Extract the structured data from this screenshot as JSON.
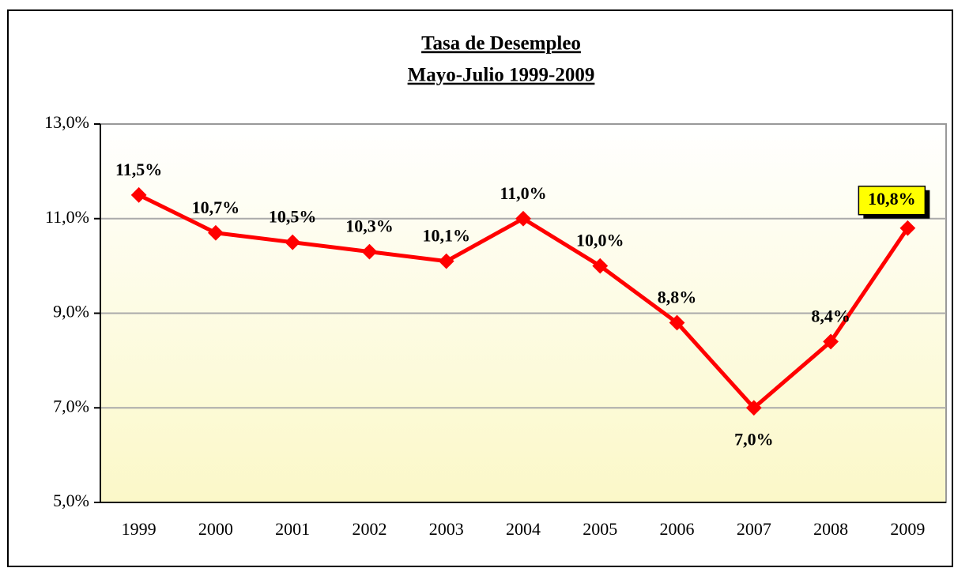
{
  "chart_data": {
    "type": "line",
    "title": "Tasa de Desempleo",
    "subtitle": "Mayo-Julio 1999-2009",
    "categories": [
      "1999",
      "2000",
      "2001",
      "2002",
      "2003",
      "2004",
      "2005",
      "2006",
      "2007",
      "2008",
      "2009"
    ],
    "series": [
      {
        "name": "Tasa de Desempleo",
        "color": "#ff0000",
        "values": [
          11.5,
          10.7,
          10.5,
          10.3,
          10.1,
          11.0,
          10.0,
          8.8,
          7.0,
          8.4,
          10.8
        ],
        "value_labels": [
          "11,5%",
          "10,7%",
          "10,5%",
          "10,3%",
          "10,1%",
          "11,0%",
          "10,0%",
          "8,8%",
          "7,0%",
          "8,4%",
          "10,8%"
        ]
      }
    ],
    "ylim": [
      5,
      13
    ],
    "yticks": [
      {
        "value": 5,
        "label": "5,0%"
      },
      {
        "value": 7,
        "label": "7,0%"
      },
      {
        "value": 9,
        "label": "9,0%"
      },
      {
        "value": 11,
        "label": "11,0%"
      },
      {
        "value": 13,
        "label": "13,0%"
      }
    ],
    "grid": true
  }
}
